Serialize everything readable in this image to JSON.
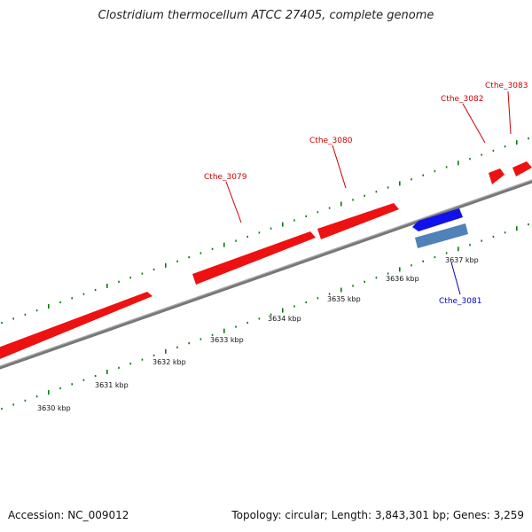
{
  "header": {
    "title": "Clostridium thermocellum ATCC 27405, complete genome"
  },
  "footer": {
    "accession": "Accession: NC_009012",
    "summary": "Topology: circular; Length: 3,843,301 bp; Genes: 3,259"
  },
  "colors": {
    "forward_gene": "#ee0000",
    "reverse_gene": "#0000dd",
    "reverse_gene_secondary": "#4f82b8",
    "backbone": "#888888",
    "tick": "#0a7a0a",
    "forward_label": "#cc0000",
    "reverse_label": "#0000cc"
  },
  "scale_labels": [
    "3630 kbp",
    "3631 kbp",
    "3632 kbp",
    "3633 kbp",
    "3634 kbp",
    "3635 kbp",
    "3636 kbp",
    "3637 kbp"
  ],
  "gene_labels": [
    {
      "name": "Cthe_3079",
      "strand": "forward"
    },
    {
      "name": "Cthe_3080",
      "strand": "forward"
    },
    {
      "name": "Cthe_3082",
      "strand": "forward"
    },
    {
      "name": "Cthe_3083",
      "strand": "forward"
    },
    {
      "name": "Cthe_3081",
      "strand": "reverse"
    }
  ]
}
